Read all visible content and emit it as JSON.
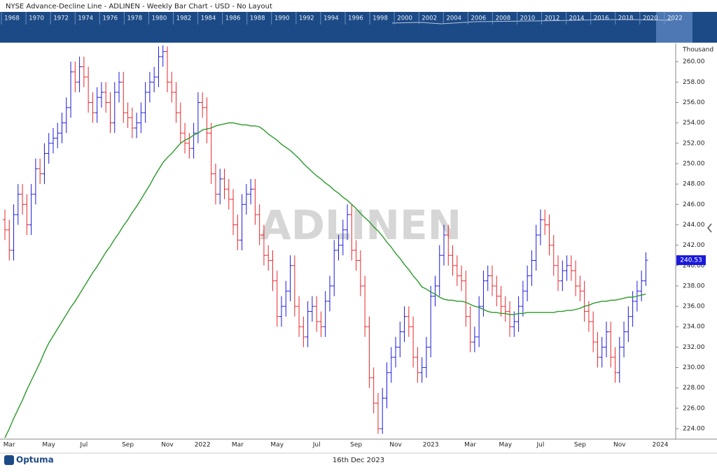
{
  "header": {
    "title": "NYSE  Advance-Decline Line - ADLINEN - Weekly Bar Chart - USD - No Layout"
  },
  "navigator": {
    "years": [
      "1968",
      "1970",
      "1972",
      "1974",
      "1976",
      "1978",
      "1980",
      "1982",
      "1984",
      "1986",
      "1988",
      "1990",
      "1992",
      "1994",
      "1996",
      "1998",
      "2000",
      "2002",
      "2004",
      "2006",
      "2008",
      "2010",
      "2012",
      "2014",
      "2016",
      "2018",
      "2020",
      "2022"
    ]
  },
  "chart_data": {
    "type": "ohlc",
    "watermark": "ADLINEN",
    "y_unit": "Thousand",
    "x_end_label": "2024",
    "up_color": "#1a1adb",
    "down_color": "#e8262b",
    "categories": [
      null,
      "Mar",
      null,
      null,
      null,
      null,
      null,
      null,
      null,
      null,
      "May",
      null,
      null,
      null,
      null,
      null,
      null,
      null,
      "Jul",
      null,
      null,
      null,
      null,
      null,
      null,
      null,
      null,
      null,
      "Sep",
      null,
      null,
      null,
      null,
      null,
      null,
      null,
      null,
      "Nov",
      null,
      null,
      null,
      null,
      null,
      null,
      null,
      "2022",
      null,
      null,
      null,
      null,
      null,
      null,
      null,
      "Mar",
      null,
      null,
      null,
      null,
      null,
      null,
      null,
      null,
      "May",
      null,
      null,
      null,
      null,
      null,
      null,
      null,
      null,
      "Jul",
      null,
      null,
      null,
      null,
      null,
      null,
      null,
      null,
      "Sep",
      null,
      null,
      null,
      null,
      null,
      null,
      null,
      null,
      "Nov",
      null,
      null,
      null,
      null,
      null,
      null,
      null,
      "2023",
      null,
      null,
      null,
      null,
      null,
      null,
      null,
      null,
      "Mar",
      null,
      null,
      null,
      null,
      null,
      null,
      null,
      "May",
      null,
      null,
      null,
      null,
      null,
      null,
      null,
      "Jul",
      null,
      null,
      null,
      null,
      null,
      null,
      null,
      null,
      "Sep",
      null,
      null,
      null,
      null,
      null,
      null,
      null,
      null,
      "Nov",
      null,
      null,
      null,
      null,
      null,
      null
    ],
    "open": [
      244.5,
      243.5,
      241.5,
      245,
      247,
      246,
      244,
      247,
      249.5,
      249,
      251,
      252,
      252.5,
      253,
      254,
      255.5,
      259,
      258,
      259.5,
      258.5,
      256,
      255,
      256.5,
      257,
      256,
      254,
      257,
      258,
      255,
      254.5,
      253.5,
      254,
      255,
      257,
      258,
      258.5,
      260.5,
      261,
      258,
      257,
      255,
      253,
      252,
      251.5,
      253,
      256,
      255.5,
      253,
      249,
      247,
      248.5,
      247.5,
      246.5,
      244,
      242.5,
      246,
      247,
      247.5,
      245,
      243,
      241,
      240.5,
      238.5,
      235,
      236,
      237.5,
      240,
      236,
      234,
      233,
      235.5,
      236,
      234.5,
      234,
      236.5,
      238,
      241.5,
      242,
      243.5,
      245,
      241.5,
      240.5,
      238,
      234,
      229,
      226.5,
      224,
      227,
      229.5,
      231,
      232,
      233.5,
      235,
      234,
      231,
      229.5,
      230,
      232,
      237,
      238,
      241,
      243,
      241,
      240,
      239,
      238.5,
      235,
      232.5,
      233,
      236,
      238.5,
      239,
      238,
      237,
      236,
      235.5,
      234,
      234.5,
      236,
      237.5,
      239,
      240.5,
      243,
      244.5,
      244,
      242,
      240,
      238.5,
      239.5,
      240,
      239.5,
      238,
      237.5,
      235.5,
      234.5,
      232.5,
      231,
      232,
      233.5,
      231,
      229.5,
      232,
      233.5,
      235,
      236.5,
      237.5,
      238.5
    ],
    "high": [
      245.5,
      244.5,
      246,
      248,
      248,
      247,
      248,
      250.5,
      250.5,
      252,
      253,
      253.5,
      254,
      255,
      256.5,
      260,
      260,
      260.5,
      260.5,
      259.5,
      257,
      257.5,
      258,
      258,
      257,
      258,
      259,
      259,
      256,
      255.5,
      255,
      256,
      258,
      259,
      259.5,
      261.5,
      261.6,
      261.5,
      259,
      258,
      256,
      254,
      253,
      254,
      257,
      257,
      256.5,
      254,
      250,
      249.5,
      249.5,
      248.5,
      247.5,
      245,
      247,
      248,
      248.5,
      248.5,
      246,
      244,
      242,
      241.5,
      239.5,
      237,
      238.5,
      241,
      241,
      237,
      235,
      236.5,
      237,
      237,
      235.5,
      237.5,
      239,
      242.5,
      243,
      244.5,
      246,
      246,
      242.5,
      241.5,
      239,
      235,
      230,
      227.5,
      228,
      230.5,
      232,
      233,
      234.5,
      236,
      236,
      235,
      232,
      231,
      233,
      238,
      239,
      242,
      244,
      244,
      242,
      241,
      240,
      239.5,
      236,
      234,
      237,
      239.5,
      240,
      240,
      239,
      238,
      237,
      236.5,
      235.5,
      237,
      238.5,
      240,
      241.5,
      244,
      245.5,
      245.5,
      245,
      243,
      241,
      240.5,
      241,
      241,
      240.5,
      239,
      238.5,
      236.5,
      235.5,
      233.5,
      233,
      234.5,
      234.5,
      232,
      233,
      234.5,
      236,
      237.5,
      238.5,
      239.5,
      241.3
    ],
    "low": [
      242.5,
      240.5,
      240.5,
      244,
      245,
      243,
      243,
      246,
      248,
      248,
      250,
      251,
      251.5,
      252,
      253,
      254.5,
      257,
      257,
      257.5,
      255,
      254,
      254,
      255.5,
      255,
      253,
      253,
      256,
      254,
      253.5,
      252.5,
      252.5,
      253,
      254,
      256,
      257,
      257.5,
      259.5,
      257,
      256,
      254,
      252,
      251,
      250.5,
      250.5,
      252,
      254.5,
      252,
      248,
      246,
      246,
      246.5,
      245.5,
      243,
      241.5,
      241.5,
      245,
      246,
      244,
      242,
      240,
      239.5,
      237.5,
      234,
      234,
      235,
      236.5,
      235,
      233,
      232,
      232,
      234.5,
      233.5,
      233,
      233,
      235.5,
      237,
      240.5,
      241,
      242.5,
      240.5,
      239.5,
      237,
      233,
      228,
      225.5,
      223.5,
      223.5,
      226,
      228.5,
      230,
      231,
      232.5,
      233,
      230,
      228.5,
      228.5,
      229,
      231,
      236,
      237,
      240,
      240,
      239,
      238,
      237.5,
      234,
      231.5,
      231.5,
      232,
      235,
      237.5,
      237,
      236,
      235,
      234.5,
      233,
      233,
      233.5,
      235,
      236.5,
      238,
      239.5,
      242,
      243,
      241,
      239,
      237.5,
      237.5,
      238.5,
      238.5,
      237,
      236.5,
      234.5,
      233.5,
      231.5,
      230,
      230,
      231,
      230,
      228.5,
      228.5,
      231,
      232.5,
      234,
      235.5,
      236.5,
      238
    ],
    "close": [
      243.5,
      241.5,
      245,
      247,
      246,
      244,
      247,
      249.5,
      249,
      251,
      252,
      252.5,
      253,
      254,
      255.5,
      259,
      258,
      259.5,
      258.5,
      256,
      255,
      256.5,
      257,
      256,
      254,
      257,
      258,
      255,
      254.5,
      253.5,
      254,
      255,
      257,
      258,
      258.5,
      260.5,
      261,
      258,
      257,
      255,
      253,
      252,
      251.5,
      253,
      256,
      255.5,
      253,
      249,
      247,
      248.5,
      247.5,
      246.5,
      244,
      242.5,
      246,
      247,
      247.5,
      245,
      243,
      241,
      240.5,
      238.5,
      235,
      236,
      237.5,
      240,
      236,
      234,
      233,
      235.5,
      236,
      234.5,
      234,
      236.5,
      238,
      241.5,
      242,
      243.5,
      245,
      241.5,
      240.5,
      238,
      234,
      229,
      226.5,
      224,
      227,
      229.5,
      231,
      232,
      233.5,
      235,
      234,
      231,
      229.5,
      230,
      232,
      237,
      238,
      241,
      243,
      241,
      240,
      239,
      238.5,
      235,
      232.5,
      233,
      236,
      238.5,
      239,
      238,
      237,
      236,
      235.5,
      234,
      234.5,
      236,
      237.5,
      239,
      240.5,
      243,
      244.5,
      244,
      242,
      240,
      238.5,
      239.5,
      240,
      239.5,
      238,
      237.5,
      235.5,
      234.5,
      232.5,
      231,
      232,
      233.5,
      231,
      229.5,
      232,
      233.5,
      235,
      236.5,
      237.5,
      238.5,
      240.53
    ],
    "moving_average": {
      "color": "#2a9a2a",
      "values": [
        223.1,
        224.0,
        225.0,
        225.9,
        226.8,
        227.8,
        228.7,
        229.6,
        230.5,
        231.5,
        232.4,
        233.1,
        233.8,
        234.5,
        235.2,
        235.9,
        236.5,
        237.2,
        237.9,
        238.6,
        239.3,
        239.9,
        240.6,
        241.3,
        241.9,
        242.6,
        243.2,
        243.9,
        244.5,
        245.2,
        245.8,
        246.5,
        247.2,
        247.9,
        248.7,
        249.4,
        250.1,
        250.6,
        251.0,
        251.5,
        252,
        252.3,
        252.5,
        252.8,
        253.0,
        253.3,
        253.4,
        253.5,
        253.7,
        253.8,
        253.9,
        254,
        254.0,
        253.9,
        253.8,
        253.8,
        253.7,
        253.7,
        253.6,
        253.3,
        252.9,
        252.6,
        252.3,
        251.9,
        251.6,
        251.3,
        250.9,
        250.5,
        250.0,
        249.6,
        249.2,
        248.8,
        248.5,
        248.1,
        247.8,
        247.4,
        247.1,
        246.7,
        246.4,
        246,
        245.6,
        245.1,
        244.7,
        244.3,
        243.8,
        243.4,
        242.9,
        242.3,
        241.8,
        241.2,
        240.7,
        240.1,
        239.6,
        239.0,
        238.5,
        237.9,
        237.7,
        237.4,
        237.2,
        236.9,
        236.7,
        236.6,
        236.6,
        236.5,
        236.5,
        236.4,
        236.2,
        236.0,
        235.9,
        235.7,
        235.5,
        235.4,
        235.4,
        235.3,
        235.3,
        235.2,
        235.2,
        235.3,
        235.3,
        235.4,
        235.4,
        235.4,
        235.4,
        235.4,
        235.4,
        235.4,
        235.5,
        235.5,
        235.6,
        235.6,
        235.7,
        235.8,
        236.0,
        236.1,
        236.3,
        236.4,
        236.5,
        236.5,
        236.6,
        236.6,
        236.7,
        236.8,
        236.9,
        236.9,
        237.0,
        237.1,
        237.2
      ]
    },
    "ylim": [
      223,
      261.8
    ],
    "yticks": [
      {
        "value": 224,
        "label": "224.00"
      },
      {
        "value": 226,
        "label": "226.00"
      },
      {
        "value": 228,
        "label": "228.00"
      },
      {
        "value": 230,
        "label": "230.00"
      },
      {
        "value": 232,
        "label": "232.00"
      },
      {
        "value": 234,
        "label": "234.00"
      },
      {
        "value": 236,
        "label": "236.00"
      },
      {
        "value": 238,
        "label": "238.00"
      },
      {
        "value": 240,
        "label": "240.00"
      },
      {
        "value": 242,
        "label": "242.00"
      },
      {
        "value": 244,
        "label": "244.00"
      },
      {
        "value": 246,
        "label": "246.00"
      },
      {
        "value": 248,
        "label": "248.00"
      },
      {
        "value": 250,
        "label": "250.00"
      },
      {
        "value": 252,
        "label": "252.00"
      },
      {
        "value": 254,
        "label": "254.00"
      },
      {
        "value": 256,
        "label": "256.00"
      },
      {
        "value": 258,
        "label": "258.00"
      },
      {
        "value": 260,
        "label": "260.00"
      }
    ]
  },
  "footer": {
    "brand": "Optuma",
    "date": "16th Dec 2023"
  }
}
